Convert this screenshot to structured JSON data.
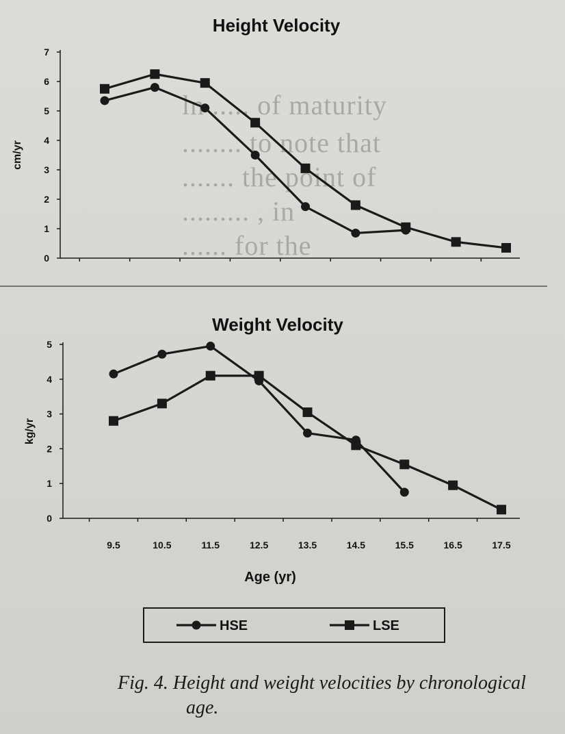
{
  "caption": {
    "line1": "Fig. 4.  Height and weight velocities by chronological",
    "line2": "age."
  },
  "colors": {
    "line": "#1a1a1a",
    "background": "#d9d9d5"
  },
  "chart_data": [
    {
      "type": "line",
      "title": "Height Velocity",
      "ylabel": "cm/yr",
      "xlabel": "",
      "x": [
        9.5,
        10.5,
        11.5,
        12.5,
        13.5,
        14.5,
        15.5,
        16.5,
        17.5
      ],
      "ylim": [
        0,
        7
      ],
      "yticks": [
        0,
        1,
        2,
        3,
        4,
        5,
        6,
        7
      ],
      "grid": false,
      "series": [
        {
          "name": "HSE",
          "marker": "circle",
          "values": [
            5.35,
            5.8,
            5.1,
            3.5,
            1.75,
            0.85,
            0.95,
            null,
            null
          ]
        },
        {
          "name": "LSE",
          "marker": "square",
          "values": [
            5.75,
            6.25,
            5.95,
            4.6,
            3.05,
            1.8,
            1.05,
            0.55,
            0.35
          ]
        }
      ]
    },
    {
      "type": "line",
      "title": "Weight Velocity",
      "ylabel": "kg/yr",
      "xlabel": "Age (yr)",
      "x": [
        9.5,
        10.5,
        11.5,
        12.5,
        13.5,
        14.5,
        15.5,
        16.5,
        17.5
      ],
      "xtick_labels": [
        "9.5",
        "10.5",
        "11.5",
        "12.5",
        "13.5",
        "14.5",
        "15.5",
        "16.5",
        "17.5"
      ],
      "ylim": [
        0,
        5
      ],
      "yticks": [
        0,
        1,
        2,
        3,
        4,
        5
      ],
      "grid": false,
      "legend": {
        "placement": "bottom-center",
        "entries": [
          "HSE",
          "LSE"
        ]
      },
      "series": [
        {
          "name": "HSE",
          "marker": "circle",
          "values": [
            4.15,
            4.72,
            4.95,
            3.95,
            2.45,
            2.25,
            0.75,
            null,
            null
          ]
        },
        {
          "name": "LSE",
          "marker": "square",
          "values": [
            2.8,
            3.3,
            4.1,
            4.1,
            3.05,
            2.1,
            1.55,
            0.95,
            0.25
          ]
        }
      ]
    }
  ]
}
